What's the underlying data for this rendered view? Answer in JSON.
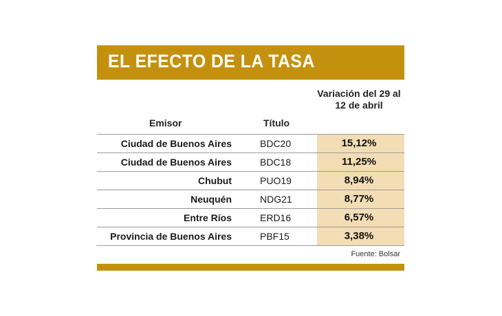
{
  "title": "EL EFECTO DE LA TASA",
  "headers": {
    "emisor": "Emisor",
    "titulo": "Título",
    "variacion": "Variación del 29 al 12 de abril"
  },
  "rows": [
    {
      "emisor": "Ciudad de Buenos Aires",
      "titulo": "BDC20",
      "variacion": "15,12%"
    },
    {
      "emisor": "Ciudad de Buenos Aires",
      "titulo": "BDC18",
      "variacion": "11,25%"
    },
    {
      "emisor": "Chubut",
      "titulo": "PUO19",
      "variacion": "8,94%"
    },
    {
      "emisor": "Neuquén",
      "titulo": "NDG21",
      "variacion": "8,77%"
    },
    {
      "emisor": "Entre Ríos",
      "titulo": "ERD16",
      "variacion": "6,57%"
    },
    {
      "emisor": "Provincia de Buenos Aires",
      "titulo": "PBF15",
      "variacion": "3,38%"
    }
  ],
  "source": "Fuente: Bolsar",
  "colors": {
    "accent": "#c4910f",
    "highlight": "#f3ddb4"
  },
  "chart_data": {
    "type": "table",
    "title": "EL EFECTO DE LA TASA",
    "columns": [
      "Emisor",
      "Título",
      "Variación del 29 al 12 de abril"
    ],
    "rows": [
      [
        "Ciudad de Buenos Aires",
        "BDC20",
        "15,12%"
      ],
      [
        "Ciudad de Buenos Aires",
        "BDC18",
        "11,25%"
      ],
      [
        "Chubut",
        "PUO19",
        "8,94%"
      ],
      [
        "Neuquén",
        "NDG21",
        "8,77%"
      ],
      [
        "Entre Ríos",
        "ERD16",
        "6,57%"
      ],
      [
        "Provincia de Buenos Aires",
        "PBF15",
        "3,38%"
      ]
    ]
  }
}
